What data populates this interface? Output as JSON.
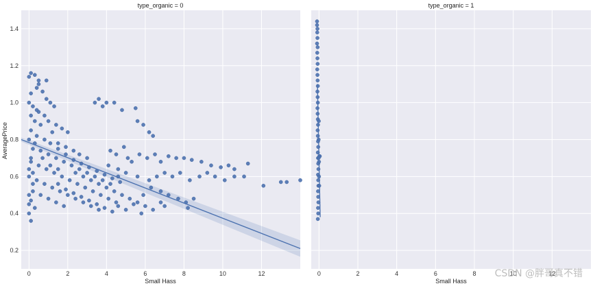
{
  "chart_data": [
    {
      "type": "scatter",
      "title": "type_organic = 0",
      "xlabel": "Small Hass",
      "ylabel": "AveragePrice",
      "xlim": [
        -0.4,
        14
      ],
      "ylim": [
        0.1,
        1.5
      ],
      "xticks": [
        0,
        2,
        4,
        6,
        8,
        10,
        12
      ],
      "yticks": [
        0.2,
        0.4,
        0.6,
        0.8,
        1.0,
        1.2,
        1.4
      ],
      "grid": true,
      "regression": {
        "x": [
          -0.4,
          14
        ],
        "y": [
          0.8,
          0.21
        ]
      },
      "series": [
        {
          "points": [
            [
              0.0,
              1.14
            ],
            [
              0.1,
              1.16
            ],
            [
              0.3,
              1.15
            ],
            [
              0.5,
              1.12
            ],
            [
              0.1,
              1.05
            ],
            [
              0.4,
              1.08
            ],
            [
              0.7,
              1.06
            ],
            [
              0.9,
              1.02
            ],
            [
              1.1,
              1.0
            ],
            [
              1.3,
              0.98
            ],
            [
              0.2,
              0.98
            ],
            [
              0.5,
              0.95
            ],
            [
              0.8,
              0.93
            ],
            [
              1.0,
              0.9
            ],
            [
              1.4,
              0.88
            ],
            [
              1.7,
              0.86
            ],
            [
              2.0,
              0.84
            ],
            [
              0.3,
              0.9
            ],
            [
              0.6,
              0.88
            ],
            [
              1.2,
              0.84
            ],
            [
              0.1,
              0.85
            ],
            [
              0.4,
              0.82
            ],
            [
              0.8,
              0.8
            ],
            [
              1.5,
              0.78
            ],
            [
              1.9,
              0.76
            ],
            [
              2.3,
              0.74
            ],
            [
              2.6,
              0.72
            ],
            [
              3.0,
              0.7
            ],
            [
              0.2,
              0.75
            ],
            [
              0.6,
              0.74
            ],
            [
              1.0,
              0.72
            ],
            [
              1.4,
              0.7
            ],
            [
              1.8,
              0.68
            ],
            [
              2.2,
              0.66
            ],
            [
              2.6,
              0.64
            ],
            [
              3.0,
              0.62
            ],
            [
              3.4,
              0.6
            ],
            [
              3.8,
              0.58
            ],
            [
              4.2,
              0.56
            ],
            [
              0.1,
              0.68
            ],
            [
              0.5,
              0.66
            ],
            [
              0.9,
              0.64
            ],
            [
              1.3,
              0.62
            ],
            [
              1.7,
              0.6
            ],
            [
              2.1,
              0.58
            ],
            [
              2.5,
              0.56
            ],
            [
              2.9,
              0.54
            ],
            [
              3.3,
              0.52
            ],
            [
              3.7,
              0.5
            ],
            [
              4.1,
              0.48
            ],
            [
              4.5,
              0.46
            ],
            [
              0.0,
              0.6
            ],
            [
              0.4,
              0.58
            ],
            [
              0.8,
              0.56
            ],
            [
              1.2,
              0.54
            ],
            [
              1.6,
              0.52
            ],
            [
              2.0,
              0.5
            ],
            [
              2.4,
              0.48
            ],
            [
              2.8,
              0.46
            ],
            [
              3.2,
              0.44
            ],
            [
              3.6,
              0.42
            ],
            [
              0.2,
              0.52
            ],
            [
              0.6,
              0.5
            ],
            [
              1.0,
              0.48
            ],
            [
              1.4,
              0.46
            ],
            [
              1.8,
              0.44
            ],
            [
              0.0,
              0.45
            ],
            [
              0.3,
              0.43
            ],
            [
              0.1,
              0.36
            ],
            [
              0.0,
              0.4
            ],
            [
              0.2,
              0.62
            ],
            [
              0.7,
              0.7
            ],
            [
              1.1,
              0.66
            ],
            [
              1.5,
              0.64
            ],
            [
              2.4,
              0.62
            ],
            [
              2.8,
              0.6
            ],
            [
              3.2,
              0.58
            ],
            [
              3.6,
              0.56
            ],
            [
              4.0,
              0.54
            ],
            [
              4.4,
              0.52
            ],
            [
              4.8,
              0.5
            ],
            [
              5.2,
              0.48
            ],
            [
              5.6,
              0.46
            ],
            [
              6.0,
              0.44
            ],
            [
              6.4,
              0.42
            ],
            [
              5.0,
              0.42
            ],
            [
              5.4,
              0.45
            ],
            [
              4.6,
              0.44
            ],
            [
              6.8,
              0.46
            ],
            [
              5.8,
              0.4
            ],
            [
              3.4,
              1.0
            ],
            [
              3.6,
              1.02
            ],
            [
              3.8,
              0.98
            ],
            [
              4.0,
              1.0
            ],
            [
              4.4,
              1.0
            ],
            [
              4.8,
              0.96
            ],
            [
              5.5,
              0.97
            ],
            [
              5.6,
              0.9
            ],
            [
              5.9,
              0.88
            ],
            [
              6.2,
              0.84
            ],
            [
              6.4,
              0.82
            ],
            [
              4.2,
              0.74
            ],
            [
              4.5,
              0.72
            ],
            [
              4.9,
              0.76
            ],
            [
              5.1,
              0.7
            ],
            [
              5.3,
              0.68
            ],
            [
              5.7,
              0.72
            ],
            [
              6.1,
              0.7
            ],
            [
              6.5,
              0.72
            ],
            [
              6.8,
              0.68
            ],
            [
              7.2,
              0.71
            ],
            [
              7.6,
              0.7
            ],
            [
              8.0,
              0.7
            ],
            [
              8.4,
              0.69
            ],
            [
              8.9,
              0.68
            ],
            [
              9.4,
              0.66
            ],
            [
              9.9,
              0.65
            ],
            [
              10.3,
              0.66
            ],
            [
              10.6,
              0.64
            ],
            [
              11.3,
              0.67
            ],
            [
              4.1,
              0.66
            ],
            [
              4.6,
              0.64
            ],
            [
              5.0,
              0.62
            ],
            [
              5.6,
              0.6
            ],
            [
              6.2,
              0.58
            ],
            [
              6.6,
              0.6
            ],
            [
              7.0,
              0.62
            ],
            [
              7.4,
              0.6
            ],
            [
              7.8,
              0.62
            ],
            [
              8.3,
              0.58
            ],
            [
              8.8,
              0.6
            ],
            [
              9.2,
              0.62
            ],
            [
              9.6,
              0.6
            ],
            [
              10.1,
              0.58
            ],
            [
              11.1,
              0.6
            ],
            [
              12.1,
              0.55
            ],
            [
              13.0,
              0.57
            ],
            [
              13.3,
              0.57
            ],
            [
              14.0,
              0.58
            ],
            [
              10.6,
              0.6
            ],
            [
              5.9,
              0.5
            ],
            [
              6.3,
              0.54
            ],
            [
              6.8,
              0.52
            ],
            [
              7.2,
              0.5
            ],
            [
              7.7,
              0.48
            ],
            [
              8.1,
              0.46
            ],
            [
              8.5,
              0.48
            ],
            [
              8.2,
              0.43
            ],
            [
              7.0,
              0.44
            ],
            [
              4.6,
              0.6
            ],
            [
              0.5,
              1.1
            ],
            [
              0.9,
              1.12
            ],
            [
              0.0,
              1.0
            ],
            [
              0.1,
              0.93
            ],
            [
              0.4,
              0.96
            ],
            [
              0.0,
              0.8
            ],
            [
              0.1,
              0.7
            ],
            [
              0.3,
              0.78
            ],
            [
              0.0,
              0.64
            ],
            [
              0.2,
              0.56
            ],
            [
              0.0,
              0.5
            ],
            [
              0.1,
              0.47
            ],
            [
              1.5,
              0.56
            ],
            [
              1.9,
              0.53
            ],
            [
              2.3,
              0.51
            ],
            [
              2.7,
              0.49
            ],
            [
              3.1,
              0.47
            ],
            [
              3.5,
              0.45
            ],
            [
              3.9,
              0.43
            ],
            [
              4.3,
              0.41
            ],
            [
              1.1,
              0.78
            ],
            [
              1.5,
              0.75
            ],
            [
              1.9,
              0.72
            ],
            [
              2.3,
              0.69
            ],
            [
              2.7,
              0.67
            ],
            [
              3.1,
              0.65
            ],
            [
              3.5,
              0.63
            ],
            [
              3.9,
              0.61
            ],
            [
              4.3,
              0.59
            ],
            [
              4.7,
              0.57
            ]
          ]
        }
      ]
    },
    {
      "type": "scatter",
      "title": "type_organic = 1",
      "xlabel": "Small Hass",
      "ylabel": "",
      "xlim": [
        -0.4,
        14
      ],
      "ylim": [
        0.1,
        1.5
      ],
      "xticks": [
        0,
        2,
        4,
        6,
        8,
        10,
        12
      ],
      "yticks": [
        0.2,
        0.4,
        0.6,
        0.8,
        1.0,
        1.2,
        1.4
      ],
      "grid": true,
      "regression": {
        "x": [
          -0.08,
          0.06
        ],
        "y": [
          1.1,
          0.38
        ]
      },
      "series": [
        {
          "points": [
            [
              -0.1,
              1.44
            ],
            [
              -0.1,
              1.42
            ],
            [
              -0.08,
              1.4
            ],
            [
              -0.09,
              1.38
            ],
            [
              -0.08,
              1.35
            ],
            [
              -0.1,
              1.32
            ],
            [
              -0.07,
              1.3
            ],
            [
              -0.09,
              1.27
            ],
            [
              -0.08,
              1.24
            ],
            [
              -0.07,
              1.21
            ],
            [
              -0.09,
              1.18
            ],
            [
              -0.08,
              1.15
            ],
            [
              -0.07,
              1.12
            ],
            [
              -0.06,
              1.09
            ],
            [
              -0.08,
              1.06
            ],
            [
              -0.07,
              1.03
            ],
            [
              -0.06,
              1.0
            ],
            [
              -0.08,
              0.97
            ],
            [
              -0.07,
              0.94
            ],
            [
              -0.06,
              0.91
            ],
            [
              -0.05,
              0.88
            ],
            [
              -0.07,
              0.85
            ],
            [
              -0.06,
              0.82
            ],
            [
              -0.05,
              0.79
            ],
            [
              -0.04,
              0.76
            ],
            [
              -0.06,
              0.73
            ],
            [
              -0.05,
              0.7
            ],
            [
              -0.04,
              0.67
            ],
            [
              -0.03,
              0.64
            ],
            [
              -0.05,
              0.61
            ],
            [
              -0.04,
              0.58
            ],
            [
              -0.03,
              0.55
            ],
            [
              -0.05,
              0.52
            ],
            [
              -0.04,
              0.49
            ],
            [
              -0.03,
              0.46
            ],
            [
              -0.05,
              0.43
            ],
            [
              -0.04,
              0.4
            ],
            [
              -0.06,
              0.37
            ],
            [
              0.02,
              0.71
            ],
            [
              0.04,
              0.71
            ],
            [
              0.0,
              0.68
            ],
            [
              -0.02,
              0.7
            ],
            [
              0.0,
              0.6
            ],
            [
              0.01,
              0.55
            ],
            [
              -0.02,
              0.8
            ],
            [
              -0.01,
              0.9
            ]
          ]
        }
      ]
    }
  ],
  "watermark": "CSDN @胖哥真不错",
  "colors": {
    "panel_bg": "#eaeaf2",
    "grid": "#ffffff",
    "point": "#4c72b0",
    "point_edge": "#3a5f9a",
    "line": "#4c72b0",
    "ci_band": "#4c72b0"
  }
}
